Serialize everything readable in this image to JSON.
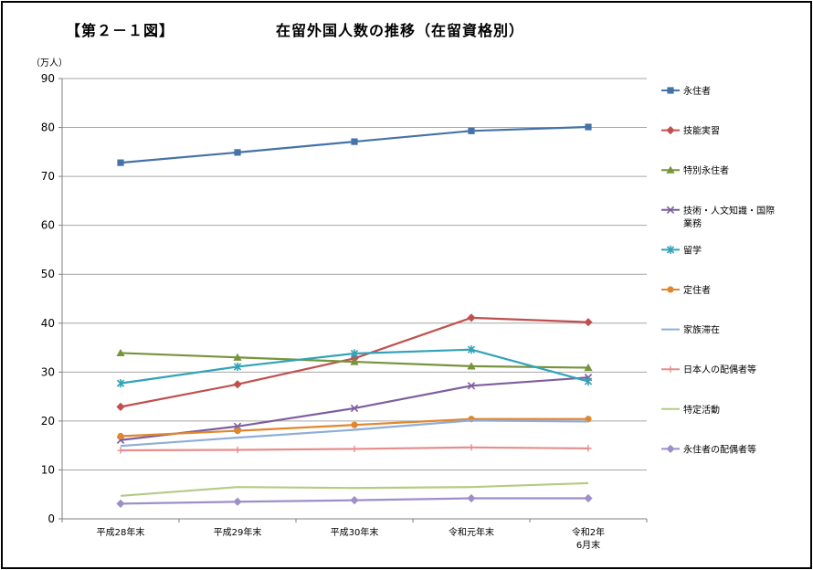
{
  "figure_label": "【第２－１図】",
  "chart_data": {
    "type": "line",
    "title": "在留外国人数の推移（在留資格別）",
    "ylabel": "（万人）",
    "xlabel": "",
    "ylim": [
      0,
      90
    ],
    "yticks": [
      0,
      10,
      20,
      30,
      40,
      50,
      60,
      70,
      80,
      90
    ],
    "grid": true,
    "legend_position": "right",
    "categories": [
      [
        "平成28年末"
      ],
      [
        "平成29年末"
      ],
      [
        "平成30年末"
      ],
      [
        "令和元年末"
      ],
      [
        "令和2年",
        "6月末"
      ]
    ],
    "series": [
      {
        "name": "永住者",
        "legend_lines": [
          "永住者"
        ],
        "color": "#4572A7",
        "marker": "square",
        "values": [
          72.8,
          74.9,
          77.1,
          79.3,
          80.1
        ]
      },
      {
        "name": "技能実習",
        "legend_lines": [
          "技能実習"
        ],
        "color": "#C0504D",
        "marker": "diamond",
        "values": [
          22.9,
          27.5,
          32.8,
          41.1,
          40.2
        ]
      },
      {
        "name": "特別永住者",
        "legend_lines": [
          "特別永住者"
        ],
        "color": "#77933C",
        "marker": "triangle",
        "values": [
          33.9,
          33.0,
          32.1,
          31.2,
          30.9
        ]
      },
      {
        "name": "技術・人文知識・国際業務",
        "legend_lines": [
          "技術・人文知識・国際",
          "業務"
        ],
        "color": "#7E5E9E",
        "marker": "x",
        "values": [
          16.1,
          18.9,
          22.6,
          27.2,
          28.9
        ]
      },
      {
        "name": "留学",
        "legend_lines": [
          "留学"
        ],
        "color": "#31A3B8",
        "marker": "star",
        "values": [
          27.7,
          31.1,
          33.8,
          34.6,
          28.1
        ]
      },
      {
        "name": "定住者",
        "legend_lines": [
          "定住者"
        ],
        "color": "#E0872E",
        "marker": "circle",
        "values": [
          16.9,
          18.0,
          19.2,
          20.4,
          20.4
        ]
      },
      {
        "name": "家族滞在",
        "legend_lines": [
          "家族滞在"
        ],
        "color": "#8EADD8",
        "marker": "none",
        "values": [
          14.9,
          16.6,
          18.2,
          20.1,
          19.9
        ]
      },
      {
        "name": "日本人の配偶者等",
        "legend_lines": [
          "日本人の配偶者等"
        ],
        "color": "#E58E8C",
        "marker": "plus",
        "values": [
          14.0,
          14.1,
          14.3,
          14.6,
          14.4
        ]
      },
      {
        "name": "特定活動",
        "legend_lines": [
          "特定活動"
        ],
        "color": "#B3CC84",
        "marker": "none",
        "values": [
          4.7,
          6.5,
          6.3,
          6.5,
          7.3
        ]
      },
      {
        "name": "永住者の配偶者等",
        "legend_lines": [
          "永住者の配偶者等"
        ],
        "color": "#9E8FC8",
        "marker": "diamond",
        "values": [
          3.1,
          3.5,
          3.8,
          4.2,
          4.2
        ]
      }
    ]
  }
}
